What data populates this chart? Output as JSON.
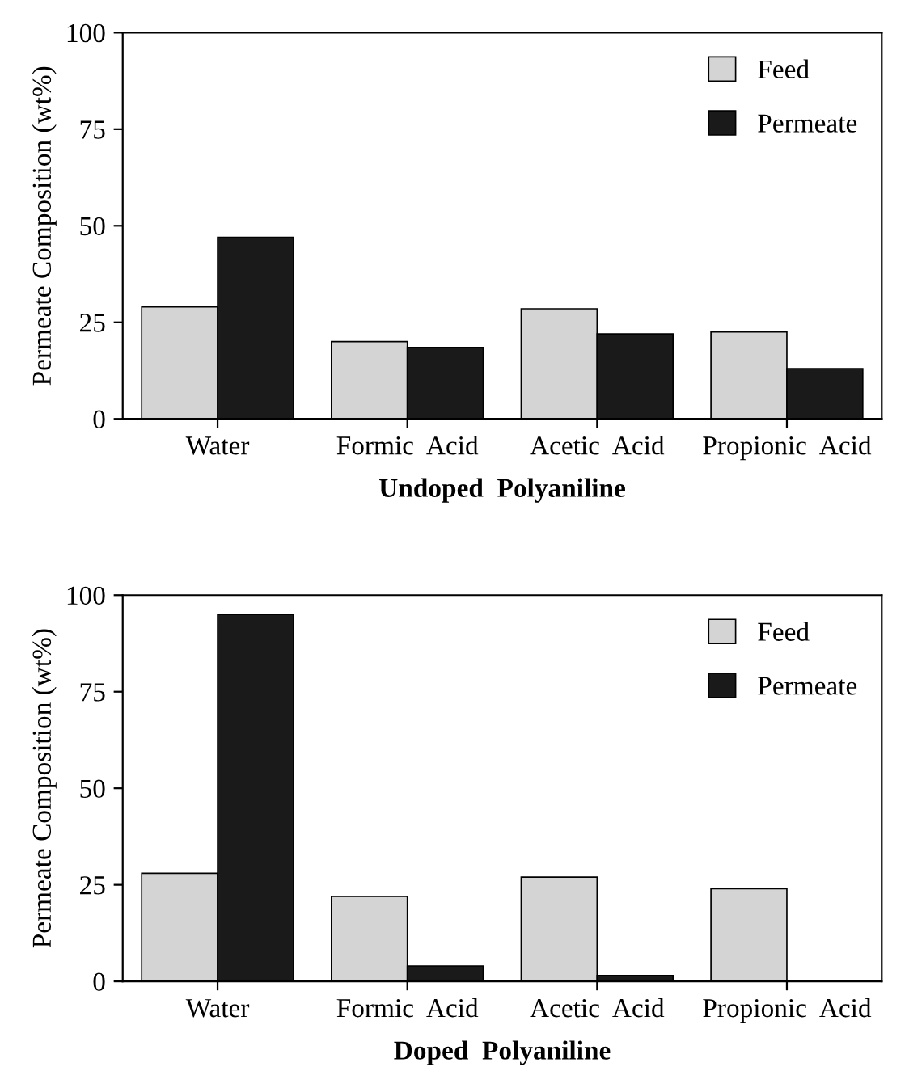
{
  "chart_data": [
    {
      "type": "bar",
      "xlabel": "Undoped  Polyaniline",
      "ylabel": "Permeate Composition (wt%)",
      "categories": [
        "Water",
        "Formic  Acid",
        "Acetic  Acid",
        "Propionic  Acid"
      ],
      "series": [
        {
          "name": "Feed",
          "color": "#d4d4d4",
          "values": [
            29,
            20,
            28.5,
            22.5
          ]
        },
        {
          "name": "Permeate",
          "color": "#1a1a1a",
          "values": [
            47,
            18.5,
            22,
            13
          ]
        }
      ],
      "ylim": [
        0,
        100
      ],
      "yticks": [
        0,
        25,
        50,
        75,
        100
      ],
      "legend": "top right"
    },
    {
      "type": "bar",
      "xlabel": "Doped  Polyaniline",
      "ylabel": "Permeate Composition (wt%)",
      "categories": [
        "Water",
        "Formic  Acid",
        "Acetic  Acid",
        "Propionic  Acid"
      ],
      "series": [
        {
          "name": "Feed",
          "color": "#d4d4d4",
          "values": [
            28,
            22,
            27,
            24
          ]
        },
        {
          "name": "Permeate",
          "color": "#1a1a1a",
          "values": [
            95,
            4,
            1.5,
            0
          ]
        }
      ],
      "ylim": [
        0,
        100
      ],
      "yticks": [
        0,
        25,
        50,
        75,
        100
      ],
      "legend": "top right"
    }
  ]
}
